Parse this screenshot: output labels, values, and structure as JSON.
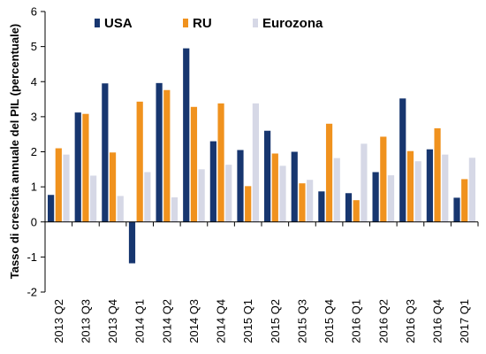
{
  "chart_data": {
    "type": "bar",
    "title": "",
    "xlabel": "",
    "ylabel": "Tasso di crescita annuale del PIL (percentuale)",
    "ylim": [
      -2,
      6
    ],
    "yticks": [
      "-2",
      "-1",
      "0",
      "1",
      "2",
      "3",
      "4",
      "5",
      "6"
    ],
    "categories": [
      "2013 Q2",
      "2013 Q3",
      "2013 Q4",
      "2014 Q1",
      "2014 Q2",
      "2014 Q3",
      "2014 Q4",
      "2015 Q1",
      "2015 Q2",
      "2015 Q3",
      "2015 Q4",
      "2016 Q1",
      "2016 Q2",
      "2016 Q3",
      "2016 Q4",
      "2017 Q1"
    ],
    "series": [
      {
        "name": "USA",
        "color": "#17366f",
        "values": [
          0.77,
          3.12,
          3.95,
          -1.18,
          3.96,
          4.95,
          2.3,
          2.05,
          2.6,
          2.0,
          0.87,
          0.82,
          1.42,
          3.52,
          2.07,
          0.69
        ]
      },
      {
        "name": "RU",
        "color": "#f0921e",
        "values": [
          2.1,
          3.08,
          1.98,
          3.43,
          3.76,
          3.28,
          3.38,
          1.02,
          1.95,
          1.1,
          2.8,
          0.62,
          2.43,
          2.02,
          2.67,
          1.22
        ]
      },
      {
        "name": "Eurozona",
        "color": "#d6d8e6",
        "values": [
          1.92,
          1.32,
          0.74,
          1.42,
          0.7,
          1.5,
          1.63,
          3.38,
          1.6,
          1.2,
          1.82,
          2.23,
          1.33,
          1.73,
          1.92,
          1.83
        ]
      }
    ],
    "legend_position": "top",
    "grid": false
  }
}
